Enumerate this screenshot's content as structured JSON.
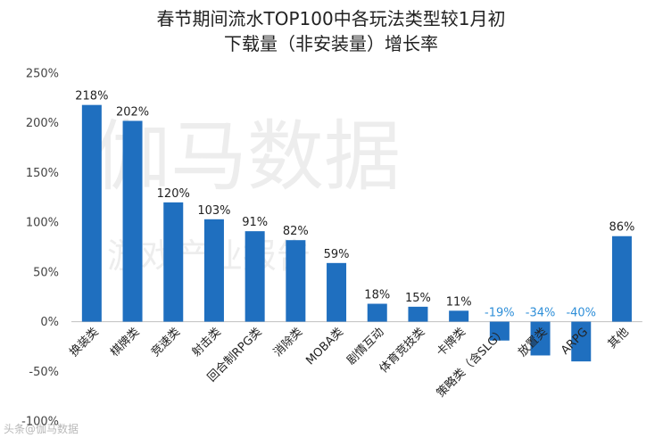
{
  "chart_data": {
    "type": "bar",
    "title_line1": "春节期间流水TOP100中各玩法类型较1月初",
    "title_line2": "下载量（非安装量）增长率",
    "categories": [
      "换装类",
      "棋牌类",
      "竞速类",
      "射击类",
      "回合制RPG类",
      "消除类",
      "MOBA类",
      "剧情互动",
      "体育竞技类",
      "卡牌类",
      "策略类（含SLG）",
      "放置类",
      "ARPG",
      "其他"
    ],
    "values": [
      218,
      202,
      120,
      103,
      91,
      82,
      59,
      18,
      15,
      11,
      -19,
      -34,
      -40,
      86
    ],
    "data_labels": [
      "218%",
      "202%",
      "120%",
      "103%",
      "91%",
      "82%",
      "59%",
      "18%",
      "15%",
      "11%",
      "-19%",
      "-34%",
      "-40%",
      "86%"
    ],
    "y_ticks": [
      250,
      200,
      150,
      100,
      50,
      0,
      -50,
      -100
    ],
    "y_tick_labels": [
      "250%",
      "200%",
      "150%",
      "100%",
      "50%",
      "0%",
      "-50%",
      "-100%"
    ],
    "ylim": [
      -100,
      250
    ],
    "xlabel": "",
    "ylabel": "",
    "grid": false,
    "colors": {
      "bar": "#1f6fbf",
      "negative_label": "#2f8fd8",
      "axis": "#bfbfbf"
    }
  },
  "watermark": {
    "main": "伽马数据",
    "sub": "游戏产业报告",
    "corner": "头条@伽马数据"
  }
}
